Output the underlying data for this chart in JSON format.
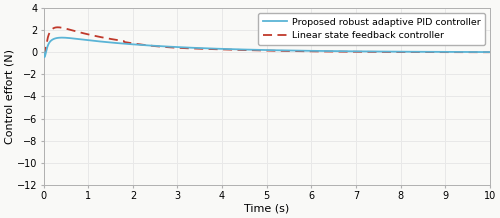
{
  "title": "",
  "xlabel": "Time (s)",
  "ylabel": "Control effort (N)",
  "xlim": [
    0,
    10
  ],
  "ylim": [
    -12,
    4
  ],
  "yticks": [
    -12,
    -10,
    -8,
    -6,
    -4,
    -2,
    0,
    2,
    4
  ],
  "xticks": [
    0,
    1,
    2,
    3,
    4,
    5,
    6,
    7,
    8,
    9,
    10
  ],
  "legend": [
    "Proposed robust adaptive PID controller",
    "Linear state feedback controller"
  ],
  "line1_color": "#5ab4d6",
  "line2_color": "#c0392b",
  "bg_color": "#f9f9f7",
  "grid_color": "#e8e8e8",
  "figsize": [
    5.0,
    2.18
  ],
  "dpi": 100
}
